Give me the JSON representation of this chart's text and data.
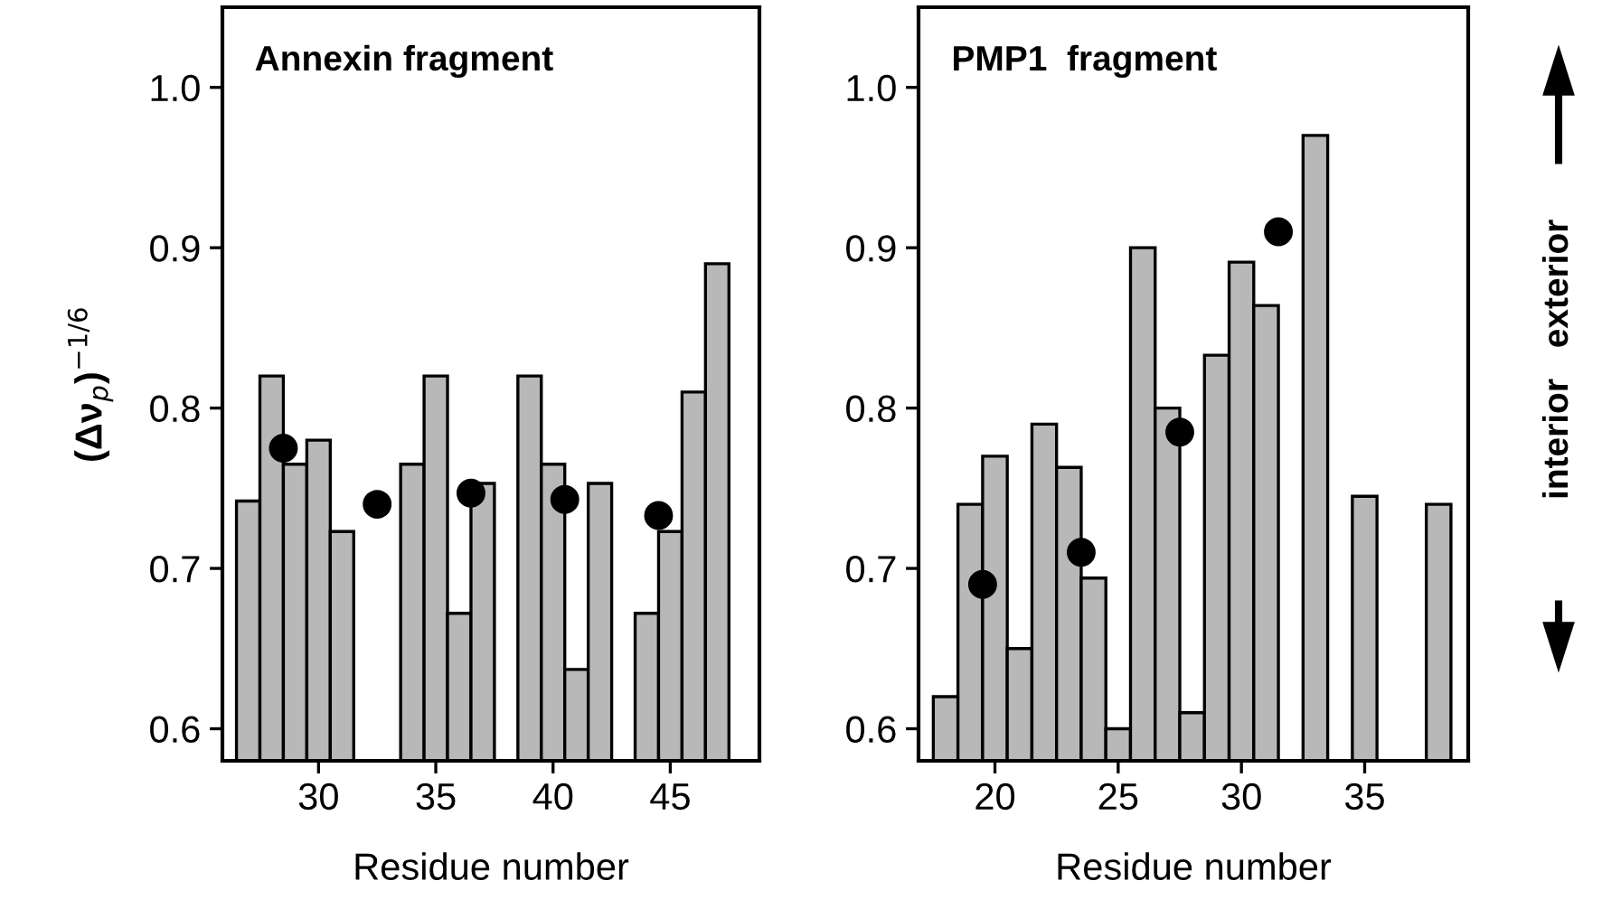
{
  "chart_data": [
    {
      "type": "bar",
      "title": "Annexin fragment",
      "xlabel": "Residue number",
      "ylabel": "(Δν$_{p}$)$^{−1/6}$",
      "series": [
        {
          "color": "#b8b8b8",
          "x": [
            27,
            28,
            29,
            30,
            31,
            34,
            35,
            36,
            37,
            39,
            40,
            41,
            42,
            44,
            45,
            46,
            47
          ],
          "values": [
            0.742,
            0.82,
            0.765,
            0.78,
            0.723,
            0.765,
            0.82,
            0.672,
            0.753,
            0.82,
            0.765,
            0.637,
            0.753,
            0.672,
            0.723,
            0.81,
            0.89
          ]
        },
        {
          "type": "scatter",
          "color": "#000000",
          "x": [
            28.5,
            32.5,
            36.5,
            40.5,
            44.5
          ],
          "values": [
            0.775,
            0.74,
            0.747,
            0.743,
            0.733
          ]
        }
      ],
      "xlim": [
        25.9,
        48.8
      ],
      "xticks": [
        30,
        35,
        40,
        45
      ],
      "ylim": [
        0.58,
        1.05
      ],
      "yticks": [
        {
          "value": 0.6,
          "label": "0.6"
        },
        {
          "value": 0.7,
          "label": "0.7"
        },
        {
          "value": 0.8,
          "label": "0.8"
        },
        {
          "value": 0.9,
          "label": "0.9"
        },
        {
          "value": 1.0,
          "label": "1.0"
        }
      ],
      "marker": "circle",
      "grid": false,
      "legend": false
    },
    {
      "type": "bar",
      "title": "PMP1  fragment",
      "xlabel": "Residue number",
      "series": [
        {
          "color": "#b8b8b8",
          "x": [
            18,
            19,
            20,
            21,
            22,
            23,
            24,
            25,
            26,
            27,
            28,
            29,
            30,
            31,
            33,
            35,
            38
          ],
          "values": [
            0.62,
            0.74,
            0.77,
            0.65,
            0.79,
            0.763,
            0.694,
            0.6,
            0.9,
            0.8,
            0.61,
            0.833,
            0.891,
            0.864,
            0.97,
            0.745,
            0.74
          ]
        },
        {
          "type": "scatter",
          "color": "#000000",
          "x": [
            19.5,
            23.5,
            27.5,
            31.5
          ],
          "values": [
            0.69,
            0.71,
            0.785,
            0.91
          ]
        }
      ],
      "xlim": [
        16.9,
        39.2
      ],
      "xticks": [
        20,
        25,
        30,
        35
      ],
      "ylim": [
        0.58,
        1.05
      ],
      "yticks": [
        {
          "value": 0.6,
          "label": "0.6"
        },
        {
          "value": 0.7,
          "label": "0.7"
        },
        {
          "value": 0.8,
          "label": "0.8"
        },
        {
          "value": 0.9,
          "label": "0.9"
        },
        {
          "value": 1.0,
          "label": "1.0"
        }
      ],
      "marker": "circle",
      "grid": false,
      "legend": false,
      "annotations": [
        "interior",
        "exterior"
      ]
    }
  ]
}
